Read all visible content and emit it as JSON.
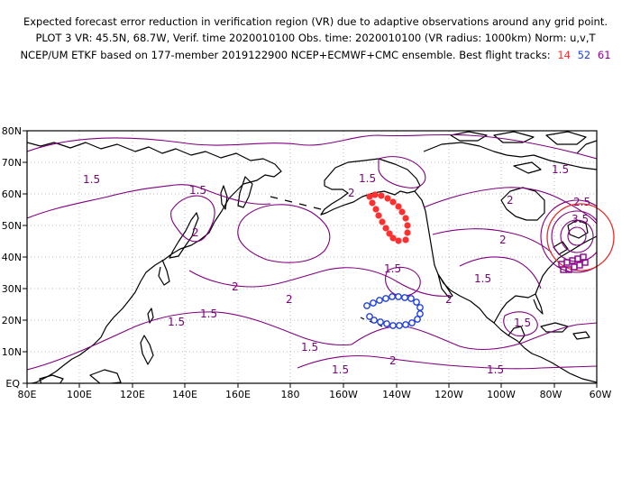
{
  "title": {
    "line1": "Expected forecast error reduction in verification region (VR) due to adaptive observations around any grid point.",
    "line2": "PLOT 3 VR: 45.5N, 68.7W, Verif. time 2020010100 Obs. time: 2020010100 (VR radius: 1000km) Norm: u,v,T",
    "line3": "NCEP/UM ETKF based on 177-member 2019122900 NCEP+ECMWF+CMC ensemble. Best flight tracks:",
    "tracks": [
      {
        "label": "14",
        "color": "#ff3030"
      },
      {
        "label": "52",
        "color": "#2040e0"
      },
      {
        "label": "61",
        "color": "#900090"
      }
    ]
  },
  "axes": {
    "x_ticks": [
      "80E",
      "100E",
      "120E",
      "140E",
      "160E",
      "180",
      "160W",
      "140W",
      "120W",
      "100W",
      "80W",
      "60W"
    ],
    "y_ticks": [
      "EQ",
      "10N",
      "20N",
      "30N",
      "40N",
      "50N",
      "60N",
      "70N",
      "80N"
    ]
  },
  "contour_labels": [
    "1.5",
    "1.5",
    "1.5",
    "1.5",
    "1.5",
    "1.5",
    "1.5",
    "1.5",
    "1.5",
    "1.5",
    "1.5",
    "1.5",
    "2",
    "2",
    "2",
    "2",
    "2",
    "2",
    "2",
    "2",
    "2.5",
    "3.5"
  ],
  "colors": {
    "contour": "#800080",
    "coast": "#000000",
    "grid": "#aaaaaa",
    "track_14": "#ff3030",
    "track_52": "#2040e0",
    "track_61": "#900090",
    "vr_circle": "#e03030"
  }
}
